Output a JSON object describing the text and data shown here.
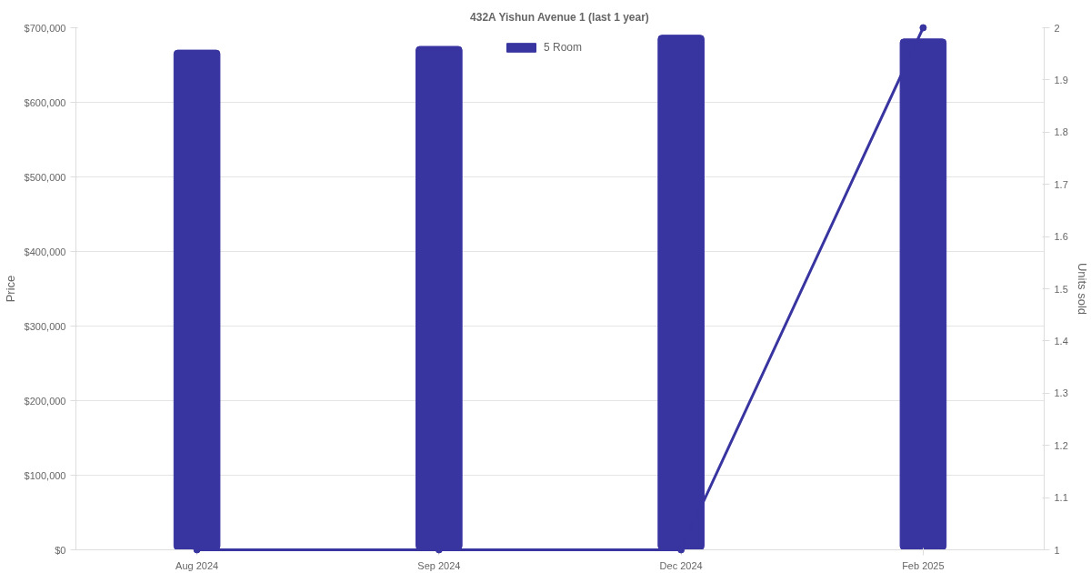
{
  "chart_data": {
    "type": "bar",
    "title": "432A Yishun Avenue 1 (last 1 year)",
    "ylabel": "Price",
    "y2label": "Units sold",
    "categories": [
      "Aug 2024",
      "Sep 2024",
      "Dec 2024",
      "Feb 2025"
    ],
    "series": [
      {
        "name": "5 Room",
        "color": "#3834a0",
        "values": [
          670000,
          675000,
          690000,
          685000
        ]
      },
      {
        "type": "line",
        "axis": "y2",
        "color": "#3834a0",
        "values": [
          1,
          1,
          1,
          2
        ]
      }
    ],
    "ylim": [
      0,
      700000
    ],
    "yticks": [
      {
        "value": 0,
        "label": "$0"
      },
      {
        "value": 100000,
        "label": "$100,000"
      },
      {
        "value": 200000,
        "label": "$200,000"
      },
      {
        "value": 300000,
        "label": "$300,000"
      },
      {
        "value": 400000,
        "label": "$400,000"
      },
      {
        "value": 500000,
        "label": "$500,000"
      },
      {
        "value": 600000,
        "label": "$600,000"
      },
      {
        "value": 700000,
        "label": "$700,000"
      }
    ],
    "y2lim": [
      1,
      2
    ],
    "y2ticks": [
      1,
      1.1,
      1.2,
      1.3,
      1.4,
      1.5,
      1.6,
      1.7,
      1.8,
      1.9,
      2
    ],
    "grid": "y",
    "legend": "top",
    "marker": "circle"
  }
}
